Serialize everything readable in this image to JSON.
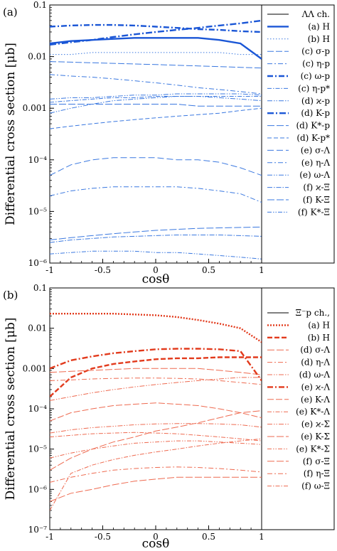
{
  "chart_data": [
    {
      "type": "line",
      "panel_label": "(a)",
      "xlabel": "cosθ",
      "ylabel": "Differential cross section [μb]",
      "xlim": [
        -1,
        1
      ],
      "ylim": [
        1e-06,
        0.1
      ],
      "yscale": "log",
      "x_ticks": [
        "-1",
        "-0.5",
        "0",
        "0.5",
        "1"
      ],
      "y_ticks": [
        "10⁻⁶",
        "10⁻⁵",
        "10⁻⁴",
        "0.001",
        "0.01",
        "0.1"
      ],
      "legend_title": "ΛΛ ch.",
      "legend_position": "right",
      "x": [
        -1,
        -0.8,
        -0.6,
        -0.4,
        -0.2,
        0,
        0.2,
        0.4,
        0.6,
        0.8,
        1
      ],
      "series": [
        {
          "name": "(a) H",
          "color": "#1a56d6",
          "dash": "",
          "width": 2.4,
          "values": [
            0.018,
            0.02,
            0.021,
            0.022,
            0.023,
            0.023,
            0.023,
            0.023,
            0.021,
            0.018,
            0.009
          ]
        },
        {
          "name": "(b) H",
          "color": "#3a78e0",
          "dash": "1.5,2.5",
          "width": 1,
          "values": [
            0.011,
            0.011,
            0.012,
            0.012,
            0.012,
            0.012,
            0.012,
            0.012,
            0.012,
            0.011,
            0.011
          ]
        },
        {
          "name": "(c) σ-p",
          "color": "#3a78e0",
          "dash": "9,3",
          "width": 1,
          "values": [
            0.008,
            0.0078,
            0.0076,
            0.0074,
            0.0072,
            0.007,
            0.0068,
            0.0066,
            0.0064,
            0.0062,
            0.006
          ]
        },
        {
          "name": "(c) η-p",
          "color": "#3a78e0",
          "dash": "7,3,2,3",
          "width": 1,
          "values": [
            0.0045,
            0.0042,
            0.004,
            0.0037,
            0.0034,
            0.0031,
            0.0028,
            0.0025,
            0.0023,
            0.0021,
            0.0019
          ]
        },
        {
          "name": "(c) ω-p",
          "color": "#1a56d6",
          "dash": "8,3,2,3",
          "width": 2.4,
          "values": [
            0.038,
            0.04,
            0.041,
            0.041,
            0.04,
            0.038,
            0.036,
            0.034,
            0.033,
            0.031,
            0.03
          ]
        },
        {
          "name": "(c) η-p*",
          "color": "#3a78e0",
          "dash": "6,2,1.5,2",
          "width": 1,
          "values": [
            0.0013,
            0.0014,
            0.0015,
            0.0016,
            0.0016,
            0.0017,
            0.0017,
            0.0017,
            0.0017,
            0.0017,
            0.0017
          ]
        },
        {
          "name": "(d) ϰ-p",
          "color": "#3a78e0",
          "dash": "7,2,1.5,2,1.5,2",
          "width": 1,
          "values": [
            0.0015,
            0.0016,
            0.0016,
            0.0017,
            0.0018,
            0.0018,
            0.0019,
            0.0019,
            0.0019,
            0.0019,
            0.0018
          ]
        },
        {
          "name": "(d) K-p",
          "color": "#1a56d6",
          "dash": "9,3,2,3",
          "width": 2.4,
          "values": [
            0.017,
            0.019,
            0.021,
            0.024,
            0.027,
            0.03,
            0.033,
            0.036,
            0.04,
            0.044,
            0.05
          ]
        },
        {
          "name": "(d) K*-p",
          "color": "#3a78e0",
          "dash": "10,3",
          "width": 1,
          "values": [
            0.0012,
            0.0012,
            0.0012,
            0.0012,
            0.0012,
            0.0012,
            0.0012,
            0.0011,
            0.0011,
            0.0011,
            0.0011
          ]
        },
        {
          "name": "(d) K-p*",
          "color": "#3a78e0",
          "dash": "6,3",
          "width": 1,
          "values": [
            0.0004,
            0.00045,
            0.0005,
            0.00055,
            0.0006,
            0.00065,
            0.0007,
            0.00075,
            0.0008,
            0.0009,
            0.001
          ]
        },
        {
          "name": "(e) σ-Λ",
          "color": "#3a78e0",
          "dash": "9,4",
          "width": 1,
          "values": [
            5e-05,
            8e-05,
            0.0001,
            0.00011,
            0.00011,
            0.00011,
            0.0001,
            0.0001,
            9e-05,
            7e-05,
            5e-05
          ]
        },
        {
          "name": "(e) η-Λ",
          "color": "#3a78e0",
          "dash": "7,3,2,3",
          "width": 1,
          "values": [
            2e-05,
            2.5e-05,
            2.8e-05,
            3e-05,
            3e-05,
            3e-05,
            3e-05,
            2.8e-05,
            2.5e-05,
            2.2e-05,
            1.5e-05
          ]
        },
        {
          "name": "(e) ω-Λ",
          "color": "#3a78e0",
          "dash": "7,2,1.5,2,1.5,2",
          "width": 1,
          "values": [
            0.0008,
            0.001,
            0.0012,
            0.0014,
            0.0015,
            0.0016,
            0.0017,
            0.0017,
            0.0016,
            0.0015,
            0.0014
          ]
        },
        {
          "name": "(f) ϰ-Ξ",
          "color": "#3a78e0",
          "dash": "7,2,1.5,2",
          "width": 1,
          "values": [
            2.5e-06,
            2.8e-06,
            3e-06,
            3.2e-06,
            3.3e-06,
            3.4e-06,
            3.5e-06,
            3.5e-06,
            3.5e-06,
            3.4e-06,
            3.3e-06
          ]
        },
        {
          "name": "(f) K-Ξ",
          "color": "#3a78e0",
          "dash": "10,3",
          "width": 1,
          "values": [
            2.8e-06,
            3.1e-06,
            3.4e-06,
            3.7e-06,
            4e-06,
            4.3e-06,
            4.5e-06,
            4.7e-06,
            4.8e-06,
            4.9e-06,
            5e-06
          ]
        },
        {
          "name": "(f) K*-Ξ",
          "color": "#3a78e0",
          "dash": "6,2,1.5,2,1.5,2",
          "width": 1,
          "values": [
            1.5e-06,
            1.6e-06,
            1.7e-06,
            1.7e-06,
            1.7e-06,
            1.6e-06,
            1.6e-06,
            1.5e-06,
            1.4e-06,
            1.3e-06,
            1.2e-06
          ]
        }
      ]
    },
    {
      "type": "line",
      "panel_label": "(b)",
      "xlabel": "cosθ",
      "ylabel": "Differential cross section [μb]",
      "xlim": [
        -1,
        1
      ],
      "ylim": [
        1e-07,
        0.1
      ],
      "yscale": "log",
      "x_ticks": [
        "-1",
        "-0.5",
        "0",
        "0.5",
        "1"
      ],
      "y_ticks": [
        "10⁻⁷",
        "10⁻⁶",
        "10⁻⁵",
        "10⁻⁴",
        "0.001",
        "0.01",
        "0.1"
      ],
      "legend_title": "Ξ⁻p ch.,",
      "legend_position": "right",
      "x": [
        -1,
        -0.8,
        -0.6,
        -0.4,
        -0.2,
        0,
        0.2,
        0.4,
        0.6,
        0.8,
        1
      ],
      "series": [
        {
          "name": "(a) H",
          "color": "#e23a1c",
          "dash": "2,2",
          "width": 2.4,
          "values": [
            0.023,
            0.023,
            0.023,
            0.023,
            0.022,
            0.021,
            0.019,
            0.016,
            0.013,
            0.01,
            0.0045
          ]
        },
        {
          "name": "(b) H",
          "color": "#e23a1c",
          "dash": "7,3",
          "width": 2.4,
          "values": [
            0.0002,
            0.0006,
            0.001,
            0.0013,
            0.0015,
            0.0017,
            0.0018,
            0.0018,
            0.0019,
            0.0019,
            0.0019
          ]
        },
        {
          "name": "(d) σ-Λ",
          "color": "#ee6a50",
          "dash": "10,3",
          "width": 1,
          "values": [
            0.0008,
            0.00085,
            0.0009,
            0.00095,
            0.001,
            0.001,
            0.001,
            0.001,
            0.0009,
            0.0008,
            0.0007
          ]
        },
        {
          "name": "(d) η-Λ",
          "color": "#ee6a50",
          "dash": "7,3,2,3",
          "width": 1,
          "values": [
            0.0005,
            0.00052,
            0.00055,
            0.00057,
            0.00058,
            0.00058,
            0.00057,
            0.00055,
            0.0005,
            0.00045,
            0.0004
          ]
        },
        {
          "name": "(d) ω-Λ",
          "color": "#ee6a50",
          "dash": "7,2,1.5,2,1.5,2",
          "width": 1,
          "values": [
            0.00016,
            0.0002,
            0.00025,
            0.0003,
            0.00035,
            0.0004,
            0.00045,
            0.0005,
            0.00055,
            0.0006,
            0.0006
          ]
        },
        {
          "name": "(e) ϰ-Λ",
          "color": "#e23a1c",
          "dash": "8,3,2,3",
          "width": 2.4,
          "values": [
            0.001,
            0.0016,
            0.002,
            0.0024,
            0.0027,
            0.003,
            0.0031,
            0.0031,
            0.003,
            0.0027,
            0.0005
          ]
        },
        {
          "name": "(e) K-Λ",
          "color": "#ee6a50",
          "dash": "9,3",
          "width": 1,
          "values": [
            5e-05,
            8e-05,
            0.0001,
            0.00012,
            0.00013,
            0.00014,
            0.00013,
            0.00012,
            0.0001,
            8e-05,
            6e-05
          ]
        },
        {
          "name": "(e) K*-Λ",
          "color": "#ee6a50",
          "dash": "6,2,1.5,2",
          "width": 1,
          "values": [
            2e-05,
            2.2e-05,
            2.4e-05,
            2.5e-05,
            2.6e-05,
            2.5e-05,
            2.4e-05,
            2.2e-05,
            2e-05,
            1.8e-05,
            1.6e-05
          ]
        },
        {
          "name": "(e) ϰ-Σ",
          "color": "#ee6a50",
          "dash": "7,2,1.5,2,1.5,2",
          "width": 1,
          "values": [
            2.5e-05,
            3e-05,
            3.4e-05,
            3.7e-05,
            4e-05,
            4.2e-05,
            4.3e-05,
            4.3e-05,
            4.2e-05,
            4e-05,
            3.5e-05
          ]
        },
        {
          "name": "(e) K-Σ",
          "color": "#ee6a50",
          "dash": "10,3",
          "width": 1,
          "values": [
            3e-06,
            6e-06,
            1e-05,
            1.5e-05,
            2e-05,
            2.8e-05,
            3.5e-05,
            4.5e-05,
            6e-05,
            8e-05,
            9e-05
          ]
        },
        {
          "name": "(e) K*-Σ",
          "color": "#ee6a50",
          "dash": "6,2,1.5,2,1.5,2",
          "width": 1,
          "values": [
            6e-06,
            8e-06,
            1e-05,
            1.2e-05,
            1.4e-05,
            1.5e-05,
            1.6e-05,
            1.6e-05,
            1.5e-05,
            1.4e-05,
            1.3e-05
          ]
        },
        {
          "name": "(f) σ-Ξ",
          "color": "#ee6a50",
          "dash": "10,3",
          "width": 1,
          "values": [
            5e-07,
            8e-07,
            1e-06,
            1.3e-06,
            1.6e-06,
            1.8e-06,
            2e-06,
            2e-06,
            2e-06,
            2e-06,
            2e-06
          ]
        },
        {
          "name": "(f) η-Ξ",
          "color": "#ee6a50",
          "dash": "7,3,2,3",
          "width": 1,
          "values": [
            1.5e-06,
            2e-06,
            2.5e-06,
            3e-06,
            3.3e-06,
            3.5e-06,
            3.6e-06,
            3.5e-06,
            3.3e-06,
            3e-06,
            2.7e-06
          ]
        },
        {
          "name": "(f) ω-Ξ",
          "color": "#ee6a50",
          "dash": "6,2,1.5,2",
          "width": 1,
          "values": [
            3e-07,
            2.5e-06,
            4e-06,
            5.5e-06,
            7e-06,
            8.5e-06,
            1e-05,
            1.2e-05,
            1.4e-05,
            1.6e-05,
            1.8e-05
          ]
        }
      ]
    }
  ]
}
